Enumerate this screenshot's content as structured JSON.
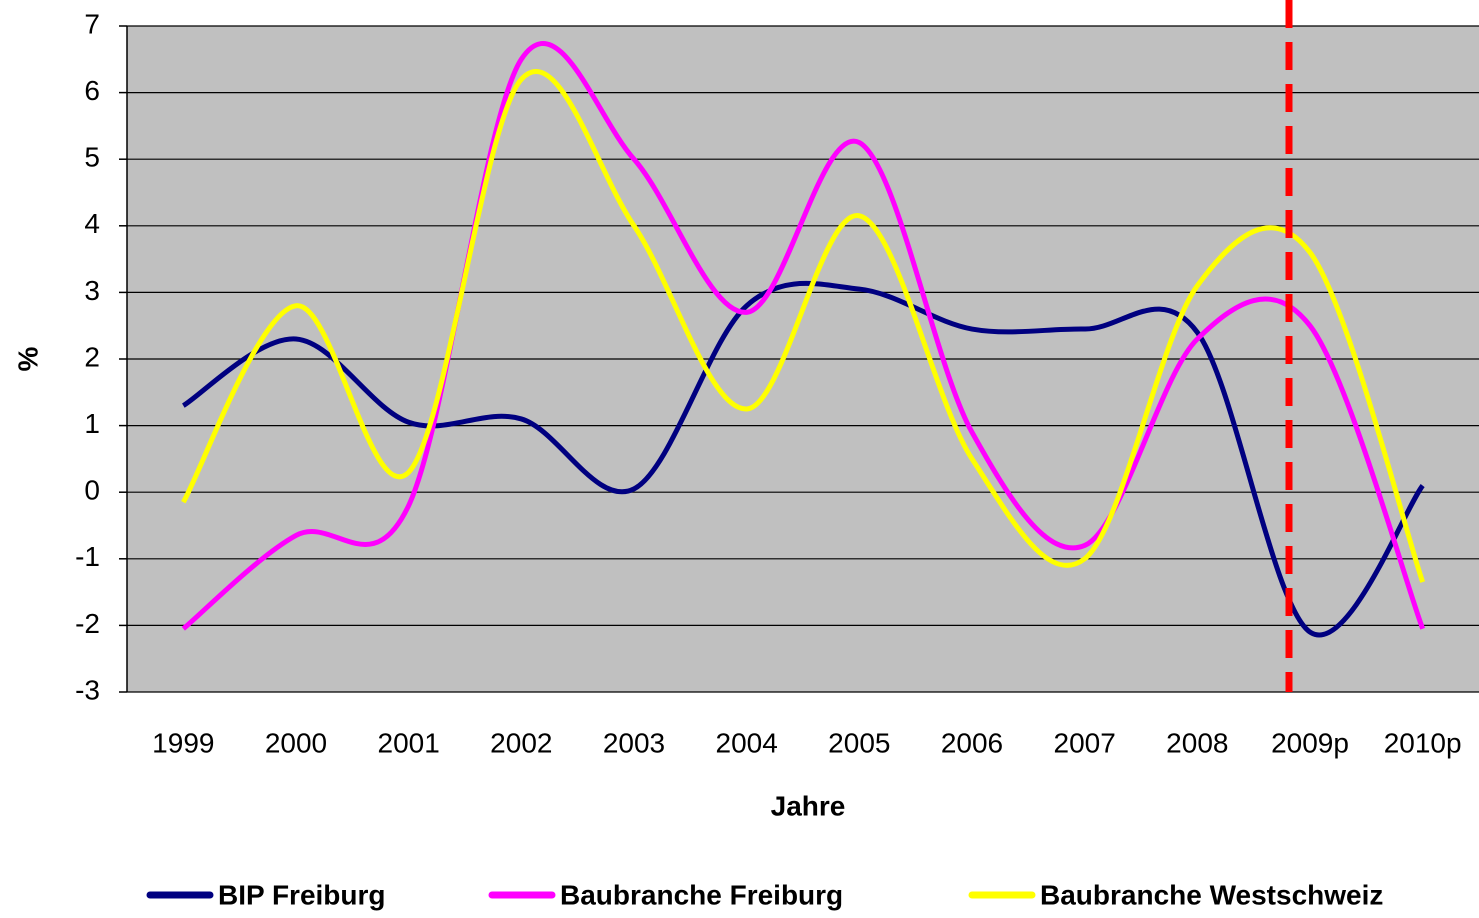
{
  "chart_data": {
    "type": "line",
    "x_label": "Jahre",
    "y_label": "%",
    "categories": [
      "1999",
      "2000",
      "2001",
      "2002",
      "2003",
      "2004",
      "2005",
      "2006",
      "2007",
      "2008",
      "2009p",
      "2010p"
    ],
    "series": [
      {
        "name": "BIP Freiburg",
        "color": "#000080",
        "values": [
          1.3,
          2.3,
          1.05,
          1.1,
          0.05,
          2.8,
          3.05,
          2.45,
          2.45,
          2.4,
          -2.1,
          0.1
        ]
      },
      {
        "name": "Baubranche Freiburg",
        "color": "#ff00ff",
        "values": [
          -2.05,
          -0.65,
          -0.2,
          6.5,
          5.0,
          2.7,
          5.25,
          0.9,
          -0.8,
          2.3,
          2.5,
          -2.05
        ]
      },
      {
        "name": "Baubranche Westschweiz",
        "color": "#ffff00",
        "values": [
          -0.15,
          2.8,
          0.3,
          6.2,
          4.0,
          1.25,
          4.15,
          0.5,
          -1.0,
          3.1,
          3.6,
          -1.35
        ]
      }
    ],
    "ylim": [
      -3,
      7
    ],
    "yticks": [
      -3,
      -2,
      -1,
      0,
      1,
      2,
      3,
      4,
      5,
      6,
      7
    ],
    "grid": true
  }
}
